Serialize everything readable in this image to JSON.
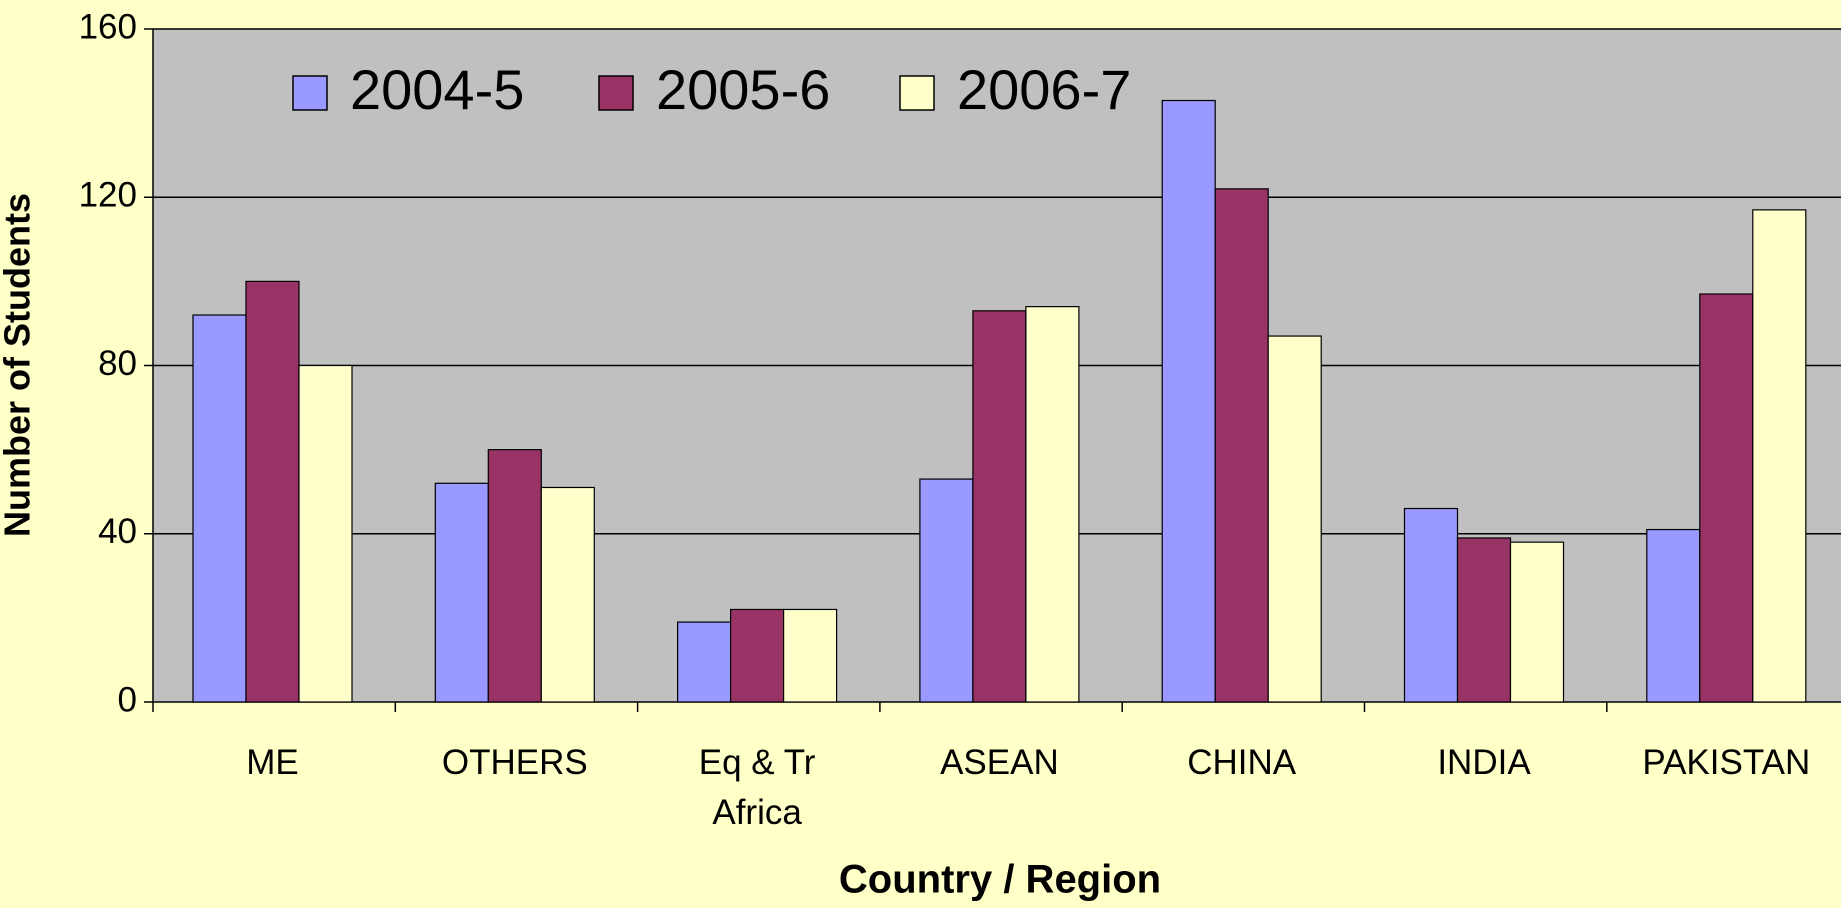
{
  "chart_data": {
    "type": "bar",
    "x_label": "Country / Region",
    "y_label": "Number of Students",
    "categories": [
      "ME",
      "OTHERS",
      "Eq & Tr Africa",
      "ASEAN",
      "CHINA",
      "INDIA",
      "PAKISTAN"
    ],
    "series": [
      {
        "name": "2004-5",
        "color": "#9999ff",
        "values": [
          92,
          52,
          19,
          53,
          143,
          46,
          41
        ]
      },
      {
        "name": "2005-6",
        "color": "#993366",
        "values": [
          100,
          60,
          22,
          93,
          122,
          39,
          97
        ]
      },
      {
        "name": "2006-7",
        "color": "#ffffcc",
        "values": [
          80,
          51,
          22,
          94,
          87,
          38,
          117
        ]
      }
    ],
    "ylim": [
      0,
      160
    ],
    "yticks": [
      0,
      40,
      80,
      120,
      160
    ],
    "grid": true,
    "legend": "top"
  }
}
